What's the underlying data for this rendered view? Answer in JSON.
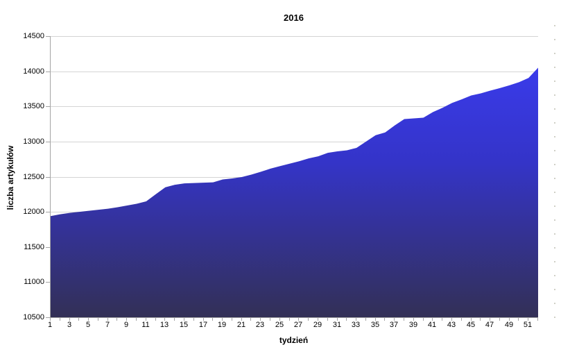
{
  "chart_data": {
    "type": "area",
    "title": "2016",
    "xlabel": "tydzień",
    "ylabel": "liczba artykułów",
    "x": [
      1,
      2,
      3,
      4,
      5,
      6,
      7,
      8,
      9,
      10,
      11,
      12,
      13,
      14,
      15,
      16,
      17,
      18,
      19,
      20,
      21,
      22,
      23,
      24,
      25,
      26,
      27,
      28,
      29,
      30,
      31,
      32,
      33,
      34,
      35,
      36,
      37,
      38,
      39,
      40,
      41,
      42,
      43,
      44,
      45,
      46,
      47,
      48,
      49,
      50,
      51,
      52
    ],
    "values": [
      11940,
      11965,
      11985,
      12000,
      12015,
      12030,
      12045,
      12065,
      12090,
      12115,
      12150,
      12250,
      12350,
      12385,
      12405,
      12410,
      12415,
      12420,
      12460,
      12475,
      12495,
      12530,
      12570,
      12615,
      12650,
      12685,
      12720,
      12760,
      12790,
      12840,
      12860,
      12875,
      12910,
      13000,
      13090,
      13130,
      13230,
      13320,
      13330,
      13340,
      13420,
      13480,
      13550,
      13600,
      13655,
      13685,
      13725,
      13760,
      13800,
      13845,
      13905,
      14050
    ],
    "ylim": [
      10500,
      14500
    ],
    "xlim": [
      1,
      52
    ],
    "y_ticks": [
      10500,
      11000,
      11500,
      12000,
      12500,
      13000,
      13500,
      14000,
      14500
    ],
    "x_tick_labels": [
      1,
      3,
      5,
      7,
      9,
      11,
      13,
      15,
      17,
      19,
      21,
      23,
      25,
      27,
      29,
      31,
      33,
      35,
      37,
      39,
      41,
      43,
      45,
      47,
      49,
      51
    ],
    "grid": true,
    "legend_position": "none",
    "colors": {
      "fill_top": "#3c3df5",
      "fill_mid": "#3434c8",
      "fill_bottom": "#333056",
      "gridline": "#d4d4d4",
      "axis": "#a3a3a3",
      "text": "#000000"
    }
  }
}
